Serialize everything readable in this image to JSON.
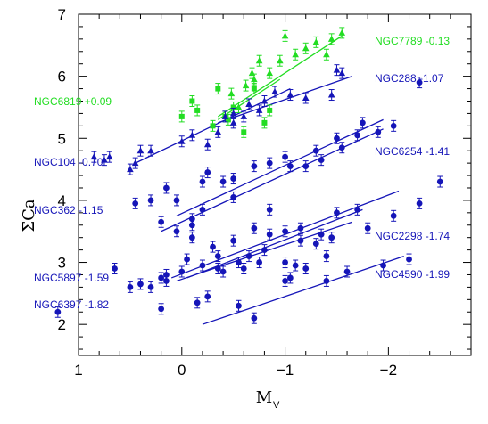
{
  "chart_data": {
    "type": "scatter",
    "xlabel": "M",
    "xlabel_sub": "V",
    "ylabel": "ΣCa",
    "xlim": [
      1,
      -2.8
    ],
    "ylim": [
      1.5,
      7
    ],
    "x_ticks": [
      1,
      0,
      -1,
      -2
    ],
    "x_tick_labels": [
      "1",
      "0",
      "−1",
      "−2"
    ],
    "y_ticks": [
      2,
      3,
      4,
      5,
      6,
      7
    ],
    "y_tick_labels": [
      "2",
      "3",
      "4",
      "5",
      "6",
      "7"
    ],
    "colors": {
      "green": "#22dd22",
      "blue": "#1515b8",
      "axis": "#000000"
    },
    "series": [
      {
        "name": "NGC7789 -0.13",
        "color": "green",
        "marker": "triangle",
        "fit": [
          [
            -0.35,
            5.35
          ],
          [
            -1.55,
            6.65
          ]
        ],
        "points": [
          {
            "x": -0.55,
            "y": 5.5
          },
          {
            "x": -0.62,
            "y": 5.85
          },
          {
            "x": -0.7,
            "y": 5.95
          },
          {
            "x": -0.75,
            "y": 6.25
          },
          {
            "x": -0.85,
            "y": 6.05
          },
          {
            "x": -0.95,
            "y": 6.25
          },
          {
            "x": -1.0,
            "y": 6.65
          },
          {
            "x": -1.1,
            "y": 6.35
          },
          {
            "x": -1.2,
            "y": 6.45
          },
          {
            "x": -1.3,
            "y": 6.55
          },
          {
            "x": -1.4,
            "y": 6.35
          },
          {
            "x": -1.45,
            "y": 6.6
          },
          {
            "x": -1.55,
            "y": 6.7
          },
          {
            "x": -0.68,
            "y": 6.05
          },
          {
            "x": -0.48,
            "y": 5.72
          }
        ]
      },
      {
        "name": "NGC6819 +0.09",
        "color": "green",
        "marker": "square",
        "fit": [
          [
            -0.35,
            5.3
          ],
          [
            -0.95,
            5.95
          ]
        ],
        "points": [
          {
            "x": -0.42,
            "y": 5.35
          },
          {
            "x": -0.3,
            "y": 5.2
          },
          {
            "x": -0.15,
            "y": 5.45
          },
          {
            "x": 0.0,
            "y": 5.35
          },
          {
            "x": -0.1,
            "y": 5.6
          },
          {
            "x": -0.35,
            "y": 5.8
          },
          {
            "x": -0.45,
            "y": 5.3
          },
          {
            "x": -0.5,
            "y": 5.5
          },
          {
            "x": -0.6,
            "y": 5.1
          },
          {
            "x": -0.7,
            "y": 5.8
          },
          {
            "x": -0.8,
            "y": 5.25
          },
          {
            "x": -0.85,
            "y": 5.45
          }
        ]
      },
      {
        "name": "NGC288 -1.07",
        "color": "blue",
        "marker": "triangle",
        "fit": [
          [
            -0.35,
            5.25
          ],
          [
            -1.65,
            6.0
          ]
        ],
        "points": [
          {
            "x": -0.42,
            "y": 5.35
          },
          {
            "x": -0.5,
            "y": 5.4
          },
          {
            "x": -0.65,
            "y": 5.55
          },
          {
            "x": -0.75,
            "y": 5.45
          },
          {
            "x": -0.8,
            "y": 5.6
          },
          {
            "x": -0.9,
            "y": 5.75
          },
          {
            "x": -1.05,
            "y": 5.7
          },
          {
            "x": -1.2,
            "y": 5.65
          },
          {
            "x": -1.45,
            "y": 5.7
          },
          {
            "x": -1.5,
            "y": 6.1
          },
          {
            "x": -1.55,
            "y": 6.05
          },
          {
            "x": -0.6,
            "y": 5.35
          }
        ]
      },
      {
        "name": "NGC104 -0.70",
        "color": "blue",
        "marker": "triangle",
        "fit": [
          [
            0.45,
            4.6
          ],
          [
            -1.05,
            5.8
          ]
        ],
        "points": [
          {
            "x": 0.85,
            "y": 4.7
          },
          {
            "x": 0.75,
            "y": 4.65
          },
          {
            "x": 0.7,
            "y": 4.7
          },
          {
            "x": 0.45,
            "y": 4.6
          },
          {
            "x": 0.5,
            "y": 4.5
          },
          {
            "x": 0.4,
            "y": 4.8
          },
          {
            "x": 0.3,
            "y": 4.8
          },
          {
            "x": 0.0,
            "y": 4.95
          },
          {
            "x": -0.1,
            "y": 5.05
          },
          {
            "x": -0.25,
            "y": 4.9
          },
          {
            "x": -0.35,
            "y": 5.1
          },
          {
            "x": -0.5,
            "y": 5.25
          }
        ]
      },
      {
        "name": "NGC6254 -1.41",
        "color": "blue",
        "marker": "circle",
        "fit": [
          [
            0.05,
            3.75
          ],
          [
            -1.95,
            5.3
          ]
        ],
        "points": [
          {
            "x": 0.15,
            "y": 4.2
          },
          {
            "x": 0.05,
            "y": 4.0
          },
          {
            "x": -0.2,
            "y": 4.3
          },
          {
            "x": -0.25,
            "y": 4.45
          },
          {
            "x": -0.4,
            "y": 4.3
          },
          {
            "x": -0.5,
            "y": 4.35
          },
          {
            "x": -0.7,
            "y": 4.55
          },
          {
            "x": -0.85,
            "y": 4.6
          },
          {
            "x": -1.0,
            "y": 4.7
          },
          {
            "x": -1.2,
            "y": 4.55
          },
          {
            "x": -1.3,
            "y": 4.8
          },
          {
            "x": -1.5,
            "y": 5.0
          },
          {
            "x": -1.75,
            "y": 5.25
          },
          {
            "x": -1.9,
            "y": 5.1
          }
        ]
      },
      {
        "name": "NGC362 -1.15",
        "color": "blue",
        "marker": "circle",
        "fit": [
          [
            0.2,
            3.5
          ],
          [
            -1.95,
            5.15
          ]
        ],
        "points": [
          {
            "x": 0.45,
            "y": 3.95
          },
          {
            "x": 0.3,
            "y": 4.0
          },
          {
            "x": 0.2,
            "y": 3.65
          },
          {
            "x": -0.1,
            "y": 3.7
          },
          {
            "x": -0.2,
            "y": 3.85
          },
          {
            "x": -0.5,
            "y": 4.05
          },
          {
            "x": -0.85,
            "y": 3.85
          },
          {
            "x": -1.05,
            "y": 4.55
          },
          {
            "x": -1.35,
            "y": 4.65
          },
          {
            "x": -1.55,
            "y": 4.85
          },
          {
            "x": -1.7,
            "y": 5.05
          },
          {
            "x": -2.05,
            "y": 5.2
          },
          {
            "x": -2.3,
            "y": 5.9
          },
          {
            "x": -2.5,
            "y": 4.3
          }
        ]
      },
      {
        "name": "NGC2298 -1.74",
        "color": "blue",
        "marker": "circle",
        "fit": [
          [
            0.1,
            2.75
          ],
          [
            -2.1,
            4.15
          ]
        ],
        "points": [
          {
            "x": 0.05,
            "y": 3.5
          },
          {
            "x": -0.1,
            "y": 3.6
          },
          {
            "x": -0.3,
            "y": 3.25
          },
          {
            "x": -0.5,
            "y": 3.35
          },
          {
            "x": -0.7,
            "y": 3.55
          },
          {
            "x": -0.85,
            "y": 3.45
          },
          {
            "x": -1.0,
            "y": 3.5
          },
          {
            "x": -1.15,
            "y": 3.55
          },
          {
            "x": -1.35,
            "y": 3.45
          },
          {
            "x": -1.5,
            "y": 3.8
          },
          {
            "x": -1.7,
            "y": 3.85
          },
          {
            "x": -1.8,
            "y": 3.55
          },
          {
            "x": -2.05,
            "y": 3.75
          },
          {
            "x": -2.3,
            "y": 3.95
          }
        ]
      },
      {
        "name": "NGC5897 -1.59",
        "color": "blue",
        "marker": "circle",
        "fit": [
          [
            -0.05,
            2.75
          ],
          [
            -1.75,
            3.85
          ]
        ],
        "points": [
          {
            "x": 0.2,
            "y": 2.75
          },
          {
            "x": 0.15,
            "y": 2.8
          },
          {
            "x": -0.05,
            "y": 3.05
          },
          {
            "x": -0.1,
            "y": 3.4
          },
          {
            "x": -0.35,
            "y": 3.1
          },
          {
            "x": -0.55,
            "y": 3.0
          },
          {
            "x": -0.65,
            "y": 3.1
          },
          {
            "x": -0.8,
            "y": 3.2
          },
          {
            "x": -1.0,
            "y": 3.0
          },
          {
            "x": -1.15,
            "y": 3.35
          },
          {
            "x": -1.3,
            "y": 3.3
          },
          {
            "x": -1.45,
            "y": 3.4
          }
        ]
      },
      {
        "name": "NGC6397 -1.82",
        "color": "blue",
        "marker": "circle",
        "fit": [
          [
            0.05,
            2.7
          ],
          [
            -1.65,
            3.65
          ]
        ],
        "points": [
          {
            "x": 0.5,
            "y": 2.6
          },
          {
            "x": 0.4,
            "y": 2.65
          },
          {
            "x": 0.3,
            "y": 2.6
          },
          {
            "x": 0.15,
            "y": 2.7
          },
          {
            "x": 0.0,
            "y": 2.85
          },
          {
            "x": -0.2,
            "y": 2.95
          },
          {
            "x": -0.4,
            "y": 2.85
          },
          {
            "x": -0.6,
            "y": 2.9
          },
          {
            "x": -0.75,
            "y": 3.0
          },
          {
            "x": -1.05,
            "y": 2.75
          },
          {
            "x": -1.2,
            "y": 2.9
          },
          {
            "x": -1.4,
            "y": 3.1
          }
        ]
      },
      {
        "name": "NGC4590 -1.99",
        "color": "blue",
        "marker": "circle",
        "fit": [
          [
            -0.2,
            2.0
          ],
          [
            -2.15,
            3.1
          ]
        ],
        "points": [
          {
            "x": 1.2,
            "y": 2.2
          },
          {
            "x": 0.65,
            "y": 2.9
          },
          {
            "x": 0.2,
            "y": 2.25
          },
          {
            "x": -0.15,
            "y": 2.35
          },
          {
            "x": -0.25,
            "y": 2.45
          },
          {
            "x": -0.55,
            "y": 2.3
          },
          {
            "x": -0.7,
            "y": 2.1
          },
          {
            "x": -1.0,
            "y": 2.7
          },
          {
            "x": -1.4,
            "y": 2.7
          },
          {
            "x": -1.6,
            "y": 2.85
          },
          {
            "x": -1.95,
            "y": 2.95
          },
          {
            "x": -2.2,
            "y": 3.05
          },
          {
            "x": -0.35,
            "y": 2.9
          },
          {
            "x": -1.1,
            "y": 2.95
          }
        ]
      }
    ],
    "annotations": [
      {
        "text": "NGC7789 -0.13",
        "color": "green"
      },
      {
        "text": "NGC6819 +0.09",
        "color": "green"
      },
      {
        "text": "NGC288 -1.07",
        "color": "blue"
      },
      {
        "text": "NGC104 -0.70",
        "color": "blue"
      },
      {
        "text": "NGC6254 -1.41",
        "color": "blue"
      },
      {
        "text": "NGC362 -1.15",
        "color": "blue"
      },
      {
        "text": "NGC2298 -1.74",
        "color": "blue"
      },
      {
        "text": "NGC5897 -1.59",
        "color": "blue"
      },
      {
        "text": "NGC4590 -1.99",
        "color": "blue"
      },
      {
        "text": "NGC6397 -1.82",
        "color": "blue"
      }
    ]
  }
}
